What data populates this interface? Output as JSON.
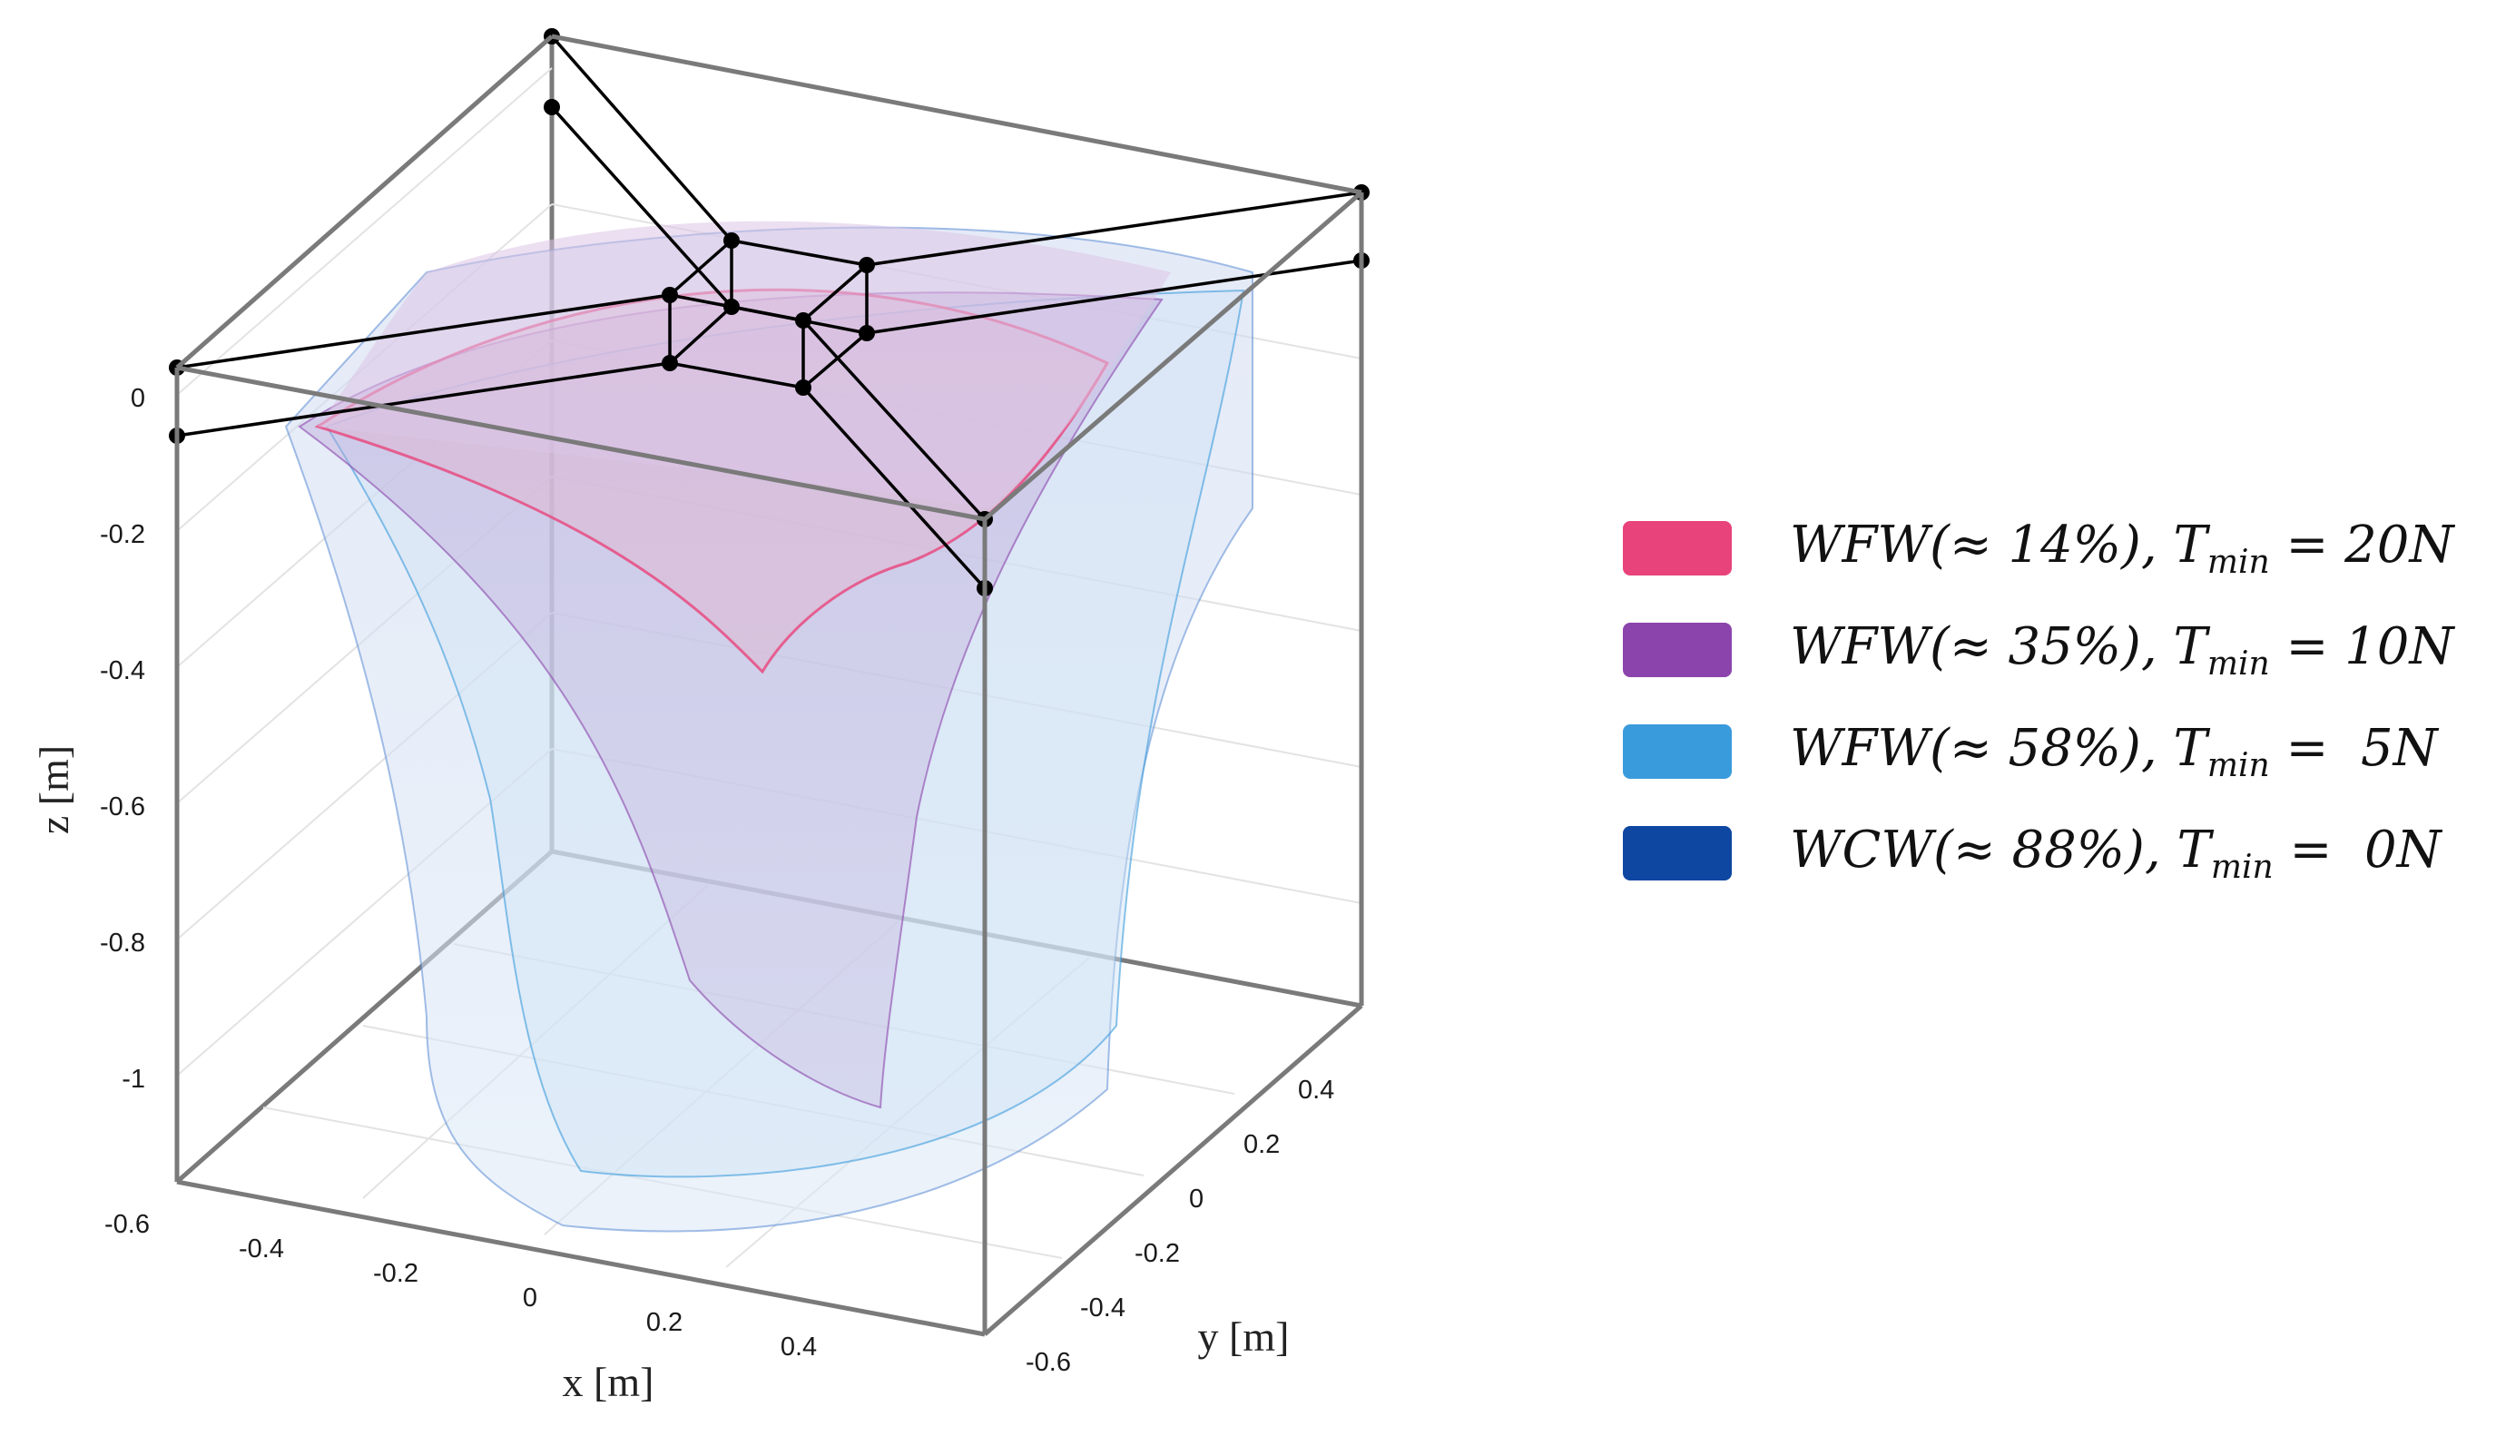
{
  "chart_data": {
    "type": "surface3d",
    "title": "",
    "xlabel": "x [m]",
    "ylabel": "y [m]",
    "zlabel": "z [m]",
    "x_ticks": [
      "-0.6",
      "-0.4",
      "-0.2",
      "0",
      "0.2",
      "0.4"
    ],
    "y_ticks": [
      "-0.6",
      "-0.4",
      "-0.2",
      "0",
      "0.2",
      "0.4"
    ],
    "z_ticks": [
      "0",
      "-0.2",
      "-0.4",
      "-0.6",
      "-0.8",
      "-1"
    ],
    "xlim": [
      -0.6,
      0.6
    ],
    "ylim": [
      -0.6,
      0.6
    ],
    "zlim": [
      -1.15,
      0.05
    ],
    "grid": true,
    "legend_position": "right",
    "series": [
      {
        "name": "WFW(≈ 14%), T_min = 20N",
        "label_main": "WFW(≈ 14%), T",
        "label_sub": "min",
        "label_tail": " = 20N",
        "color": "#E8437A",
        "coverage_percent": 14,
        "T_min_N": 20
      },
      {
        "name": "WFW(≈ 35%), T_min = 10N",
        "label_main": "WFW(≈ 35%), T",
        "label_sub": "min",
        "label_tail": " = 10N",
        "color": "#8B44AC",
        "coverage_percent": 35,
        "T_min_N": 10
      },
      {
        "name": "WFW(≈ 58%), T_min = 5N",
        "label_main": "WFW(≈ 58%), T",
        "label_sub": "min",
        "label_tail": " =  5N",
        "color": "#3A9BDC",
        "coverage_percent": 58,
        "T_min_N": 5
      },
      {
        "name": "WCW(≈ 88%), T_min = 0N",
        "label_main": "WCW(≈ 88%), T",
        "label_sub": "min",
        "label_tail": " =  0N",
        "color": "#0D47A1",
        "coverage_percent": 88,
        "T_min_N": 0
      }
    ]
  }
}
